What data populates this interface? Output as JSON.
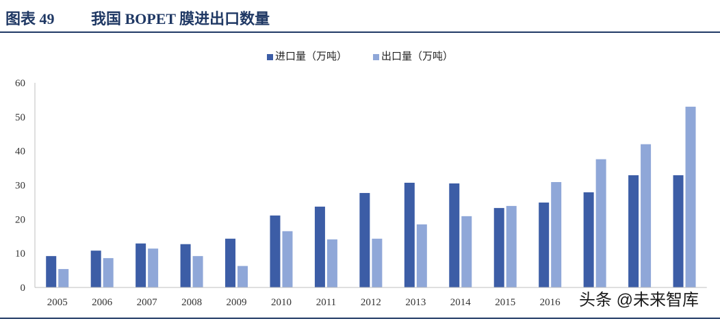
{
  "header": {
    "figure_label": "图表 49"
  },
  "colors": {
    "title": "#1F3864",
    "axis": "#BFBFBF",
    "tick_text": "#333333"
  },
  "watermark": "头条 @未来智库",
  "chart_data": {
    "type": "bar",
    "title": "我国 BOPET 膜进出口数量",
    "categories": [
      "2005",
      "2006",
      "2007",
      "2008",
      "2009",
      "2010",
      "2011",
      "2012",
      "2013",
      "2014",
      "2015",
      "2016",
      "",
      "",
      ""
    ],
    "series": [
      {
        "name": "进口量（万吨）",
        "color": "#3C5DA6",
        "values": [
          9.2,
          10.8,
          12.9,
          12.7,
          14.3,
          21.1,
          23.7,
          27.7,
          30.7,
          30.5,
          23.3,
          24.9,
          27.9,
          32.9,
          32.9
        ]
      },
      {
        "name": "出口量（万吨）",
        "color": "#8FA7D8",
        "values": [
          5.4,
          8.6,
          11.4,
          9.2,
          6.3,
          16.5,
          14.1,
          14.3,
          18.5,
          20.9,
          23.9,
          30.9,
          37.6,
          42.0,
          53.0
        ]
      }
    ],
    "ylim": [
      0,
      60
    ],
    "yticks": [
      0,
      10,
      20,
      30,
      40,
      50,
      60
    ],
    "legend": "top-center",
    "grid": false
  }
}
